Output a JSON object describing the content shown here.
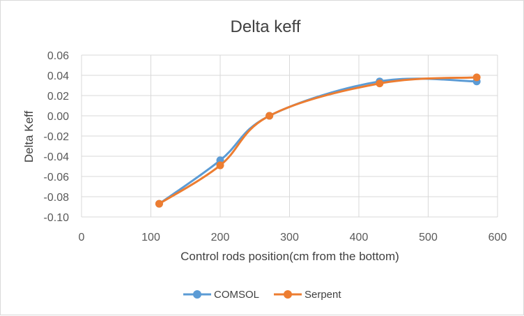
{
  "chart_data": {
    "type": "line",
    "title": "Delta keff",
    "xlabel": "Control rods position(cm from the bottom)",
    "ylabel": "Delta Keff",
    "xlim": [
      0,
      600
    ],
    "ylim": [
      -0.1,
      0.06
    ],
    "x_ticks": [
      "0",
      "100",
      "200",
      "300",
      "400",
      "500",
      "600"
    ],
    "y_ticks": [
      "0.06",
      "0.04",
      "0.02",
      "0.00",
      "-0.02",
      "-0.04",
      "-0.06",
      "-0.08",
      "-0.10"
    ],
    "x_tick_values": [
      0,
      100,
      200,
      300,
      400,
      500,
      600
    ],
    "y_tick_values": [
      0.06,
      0.04,
      0.02,
      0.0,
      -0.02,
      -0.04,
      -0.06,
      -0.08,
      -0.1
    ],
    "grid": true,
    "legend_position": "bottom",
    "series": [
      {
        "name": "COMSOL",
        "color": "#5b9bd5",
        "x": [
          112,
          200,
          271,
          430,
          570
        ],
        "values": [
          -0.087,
          -0.044,
          0.0,
          0.034,
          0.034
        ]
      },
      {
        "name": "Serpent",
        "color": "#ed7d31",
        "x": [
          112,
          200,
          271,
          430,
          570
        ],
        "values": [
          -0.087,
          -0.049,
          0.0,
          0.032,
          0.038
        ]
      }
    ]
  }
}
